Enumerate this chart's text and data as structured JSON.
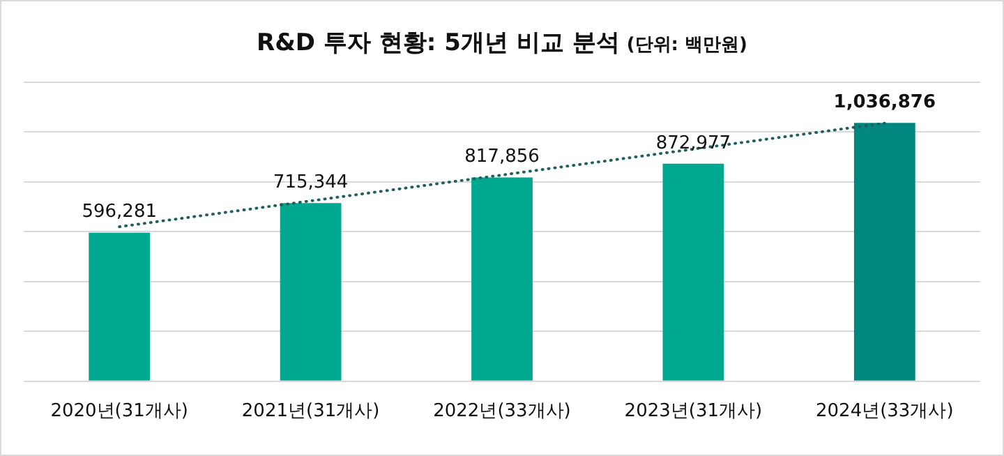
{
  "chart_data": {
    "type": "bar",
    "title": "R&D 투자 현황: 5개년 비교 분석",
    "subtitle": "(단위: 백만원)",
    "categories": [
      "2020년(31개사)",
      "2021년(31개사)",
      "2022년(33개사)",
      "2023년(31개사)",
      "2024년(33개사)"
    ],
    "series": [
      {
        "colors": [
          "#00a88f",
          "#00a88f",
          "#00a88f",
          "#00a88f",
          "#00877f"
        ],
        "values": [
          596281,
          715344,
          817856,
          872977,
          1036876
        ],
        "value_labels": [
          "596,281",
          "715,344",
          "817,856",
          "872,977",
          "1,036,876"
        ]
      },
      {
        "type": "line",
        "color": "#1f5f5f",
        "values": [
          620103,
          723985,
          827867,
          931749,
          1035631
        ],
        "line_style": "dotted",
        "marker": "none"
      }
    ],
    "tick_labels": "x",
    "grid": "y",
    "legend": false
  }
}
